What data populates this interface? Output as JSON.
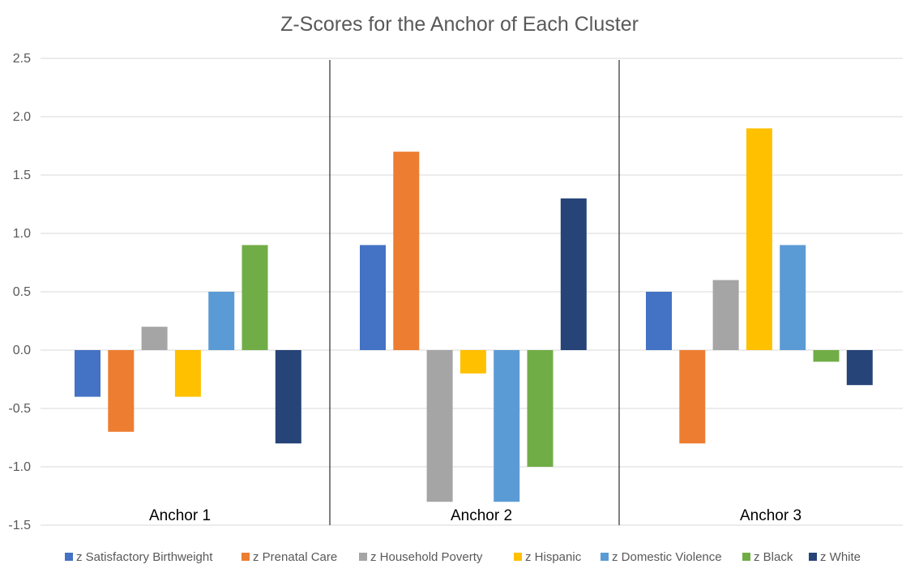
{
  "chart_data": {
    "type": "bar",
    "title": "Z-Scores for the Anchor of Each Cluster",
    "xlabel": "",
    "ylabel": "",
    "ylim": [
      -1.5,
      2.5
    ],
    "yticks": [
      "2.5",
      "2.0",
      "1.5",
      "1.0",
      "0.5",
      "0.0",
      "-0.5",
      "-1.0",
      "-1.5"
    ],
    "grid": true,
    "legend_position": "bottom",
    "categories": [
      "Anchor 1",
      "Anchor 2",
      "Anchor 3"
    ],
    "series": [
      {
        "name": "z Satisfactory Birthweight",
        "color": "#4472C4",
        "values": [
          -0.4,
          0.9,
          0.5
        ]
      },
      {
        "name": "z Prenatal Care",
        "color": "#ED7D31",
        "values": [
          -0.7,
          1.7,
          -0.8
        ]
      },
      {
        "name": "z Household Poverty",
        "color": "#A5A5A5",
        "values": [
          0.2,
          -1.3,
          0.6
        ]
      },
      {
        "name": "z Hispanic",
        "color": "#FFC000",
        "values": [
          -0.4,
          -0.2,
          1.9
        ]
      },
      {
        "name": "z Domestic Violence",
        "color": "#5B9BD5",
        "values": [
          0.5,
          -1.3,
          0.9
        ]
      },
      {
        "name": "z Black",
        "color": "#70AD47",
        "values": [
          0.9,
          -1.0,
          -0.1
        ]
      },
      {
        "name": "z White",
        "color": "#264478",
        "values": [
          -0.8,
          1.3,
          -0.3
        ]
      }
    ]
  }
}
